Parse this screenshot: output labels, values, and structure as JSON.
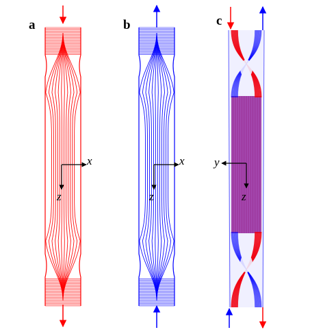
{
  "colors": {
    "red": "#ff0000",
    "blue": "#0000ff",
    "purple": "#9a1f8c",
    "axis": "#000000"
  },
  "panels": [
    {
      "id": "a",
      "label": "a",
      "axis_h": "x",
      "axis_v": "z"
    },
    {
      "id": "b",
      "label": "b",
      "axis_h": "x",
      "axis_v": "z"
    },
    {
      "id": "c",
      "label": "c",
      "axis_h": "y",
      "axis_v": "z"
    }
  ]
}
